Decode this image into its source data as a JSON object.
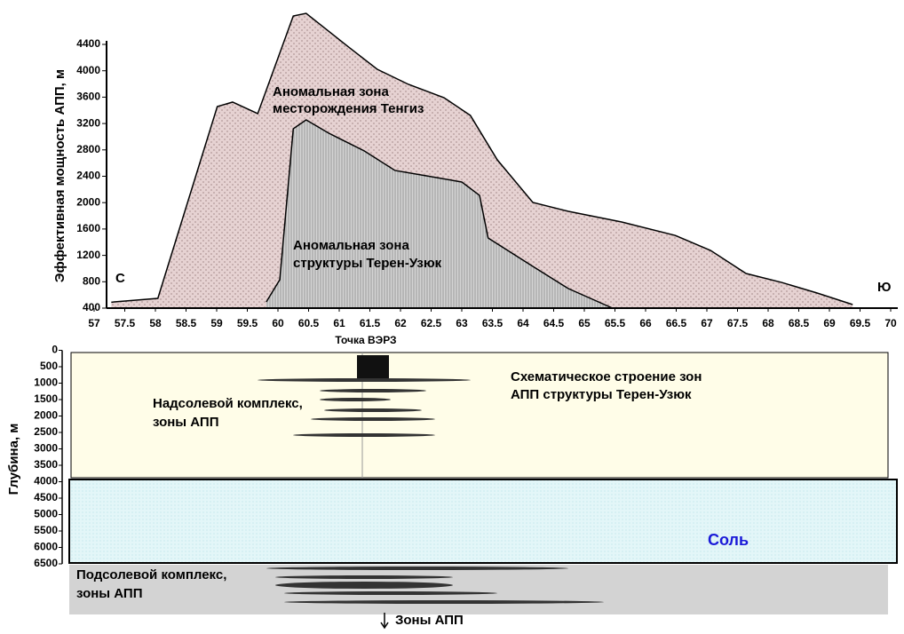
{
  "chart_data": [
    {
      "type": "area",
      "ylabel": "Эффективная мощность АПП, м",
      "xlim": [
        57,
        70
      ],
      "ylim": [
        400,
        4400
      ],
      "xticks": [
        57,
        57.5,
        58,
        58.5,
        59,
        59.5,
        60,
        60.5,
        61,
        61.5,
        62,
        62.5,
        63,
        63.5,
        64,
        64.5,
        65,
        65.5,
        66,
        66.5,
        67,
        67.5,
        68,
        68.5,
        69,
        69.5,
        70
      ],
      "yticks": [
        400,
        800,
        1200,
        1600,
        2000,
        2400,
        2800,
        3200,
        3600,
        4000,
        4400
      ],
      "series": [
        {
          "name": "Аномальная зона месторождения Тенгиз",
          "color": "#e6d2d2",
          "x": [
            57.28,
            58.04,
            59.01,
            59.26,
            59.67,
            60.25,
            60.46,
            61.19,
            61.62,
            62.13,
            62.71,
            63.14,
            63.58,
            64.16,
            64.74,
            65.61,
            66.48,
            67.06,
            67.64,
            68.22,
            68.8,
            69.38
          ],
          "values": [
            490,
            548,
            3457,
            3525,
            3350,
            4831,
            4871,
            4333,
            4023,
            3794,
            3592,
            3323,
            2649,
            2003,
            1868,
            1706,
            1504,
            1275,
            925,
            790,
            629,
            454
          ]
        },
        {
          "name": "Аномальная зона структуры Терен-Узюк",
          "color": "#c9c9c9",
          "x": [
            59.81,
            60.03,
            60.25,
            60.46,
            60.83,
            61.41,
            61.91,
            62.42,
            63.0,
            63.29,
            63.43,
            64.16,
            64.74,
            65.46
          ],
          "values": [
            494,
            831,
            3120,
            3255,
            3053,
            2784,
            2488,
            2407,
            2313,
            2110,
            1464,
            1033,
            696,
            400
          ]
        }
      ],
      "annotations": {
        "left": "С",
        "right": "Ю",
        "tengiz": [
          "Аномальная зона",
          "месторождения Тенгиз"
        ],
        "teren": [
          "Аномальная зона",
          "структуры Терен-Узюк"
        ]
      }
    },
    {
      "type": "section",
      "xlabel": "Точка ВЭРЗ",
      "ylabel": "Глубина, м",
      "ylim": [
        0,
        6500
      ],
      "yticks": [
        0,
        500,
        1000,
        1500,
        2000,
        2500,
        3000,
        3500,
        4000,
        4500,
        5000,
        5500,
        6000,
        6500
      ],
      "annotations": {
        "suprasalt": [
          "Надсолевой комплекс,",
          "зоны АПП"
        ],
        "scheme": [
          "Схематическое строение зон",
          "АПП структуры Терен-Узюк"
        ],
        "salt": "Соль",
        "subsalt": [
          "Подсолевой комплекс,",
          "зоны АПП"
        ],
        "bottom": "Зоны АПП"
      }
    }
  ]
}
